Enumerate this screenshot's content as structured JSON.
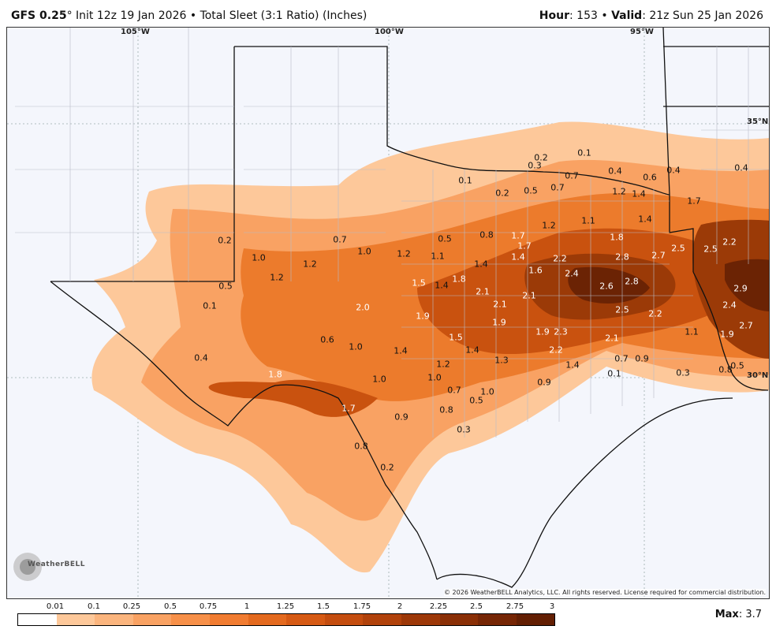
{
  "header": {
    "model": "GFS 0.25",
    "degree": "°",
    "init": " Init 12z 19 Jan 2026",
    "bullet": " • ",
    "product": "Total Sleet (3:1 Ratio) (Inches)",
    "hour_label": "Hour",
    "hour_value": ": 153",
    "valid_label": "Valid",
    "valid_value": ": 21z Sun 25 Jan 2026"
  },
  "map": {
    "longitude_labels": [
      "105°W",
      "100°W",
      "95°W"
    ],
    "latitude_labels": [
      "35°N",
      "30°N"
    ],
    "copyright": "© 2026 WeatherBELL Analytics, LLC. All rights reserved. License required for commercial distribution.",
    "logo_text": "WeatherBELL",
    "colors": {
      "sea": "#f4f6fc",
      "light": "#fdc89a",
      "mid": "#f8a863",
      "orange": "#ec7b2c",
      "dark": "#c9520f",
      "darker": "#9b3a07",
      "darkest": "#6b2304"
    },
    "point_values": [
      "0.2",
      "0.1",
      "0.4",
      "0.7",
      "0.4",
      "0.4",
      "0.3",
      "0.6",
      "0.2",
      "0.5",
      "0.7",
      "0.1",
      "1.2",
      "1.4",
      "0.2",
      "0.7",
      "1.0",
      "0.5",
      "0.8",
      "1.7",
      "1.2",
      "1.1",
      "1.4",
      "1.7",
      "1.8",
      "2.2",
      "2.5",
      "2.5",
      "1.0",
      "1.2",
      "1.2",
      "1.1",
      "1.4",
      "1.7",
      "2.2",
      "2.8",
      "2.7",
      "2.9",
      "1.2",
      "0.5",
      "1.5",
      "1.4",
      "1.8",
      "1.6",
      "1.4",
      "2.4",
      "2.8",
      "2.6",
      "0.1",
      "2.0",
      "1.9",
      "2.1",
      "2.1",
      "2.1",
      "2.5",
      "2.4",
      "0.6",
      "1.9",
      "1.9",
      "2.3",
      "2.2",
      "1.1",
      "2.7",
      "0.4",
      "1.0",
      "1.4",
      "1.5",
      "1.4",
      "2.2",
      "2.1",
      "1.9",
      "1.8",
      "1.2",
      "1.3",
      "0.7",
      "0.9",
      "1.4",
      "0.1",
      "0.3",
      "0.8",
      "0.5",
      "1.0",
      "1.0",
      "0.9",
      "0.7",
      "1.0",
      "0.5",
      "1.7",
      "0.9",
      "0.8",
      "0.3",
      "0.8",
      "0.2"
    ]
  },
  "legend": {
    "tick_labels": [
      "0.01",
      "0.1",
      "0.25",
      "0.5",
      "0.75",
      "1",
      "1.25",
      "1.5",
      "1.75",
      "2",
      "2.25",
      "2.5",
      "2.75",
      "3"
    ],
    "bin_colors": [
      "#ffffff",
      "#fdc89a",
      "#fbb57e",
      "#f9a263",
      "#f79049",
      "#f17c31",
      "#e46a1f",
      "#d65a14",
      "#c44d0f",
      "#b1420b",
      "#9d3808",
      "#8a2f06",
      "#762605",
      "#631f03"
    ],
    "max_label": "Max",
    "max_value": ": 3.7"
  }
}
